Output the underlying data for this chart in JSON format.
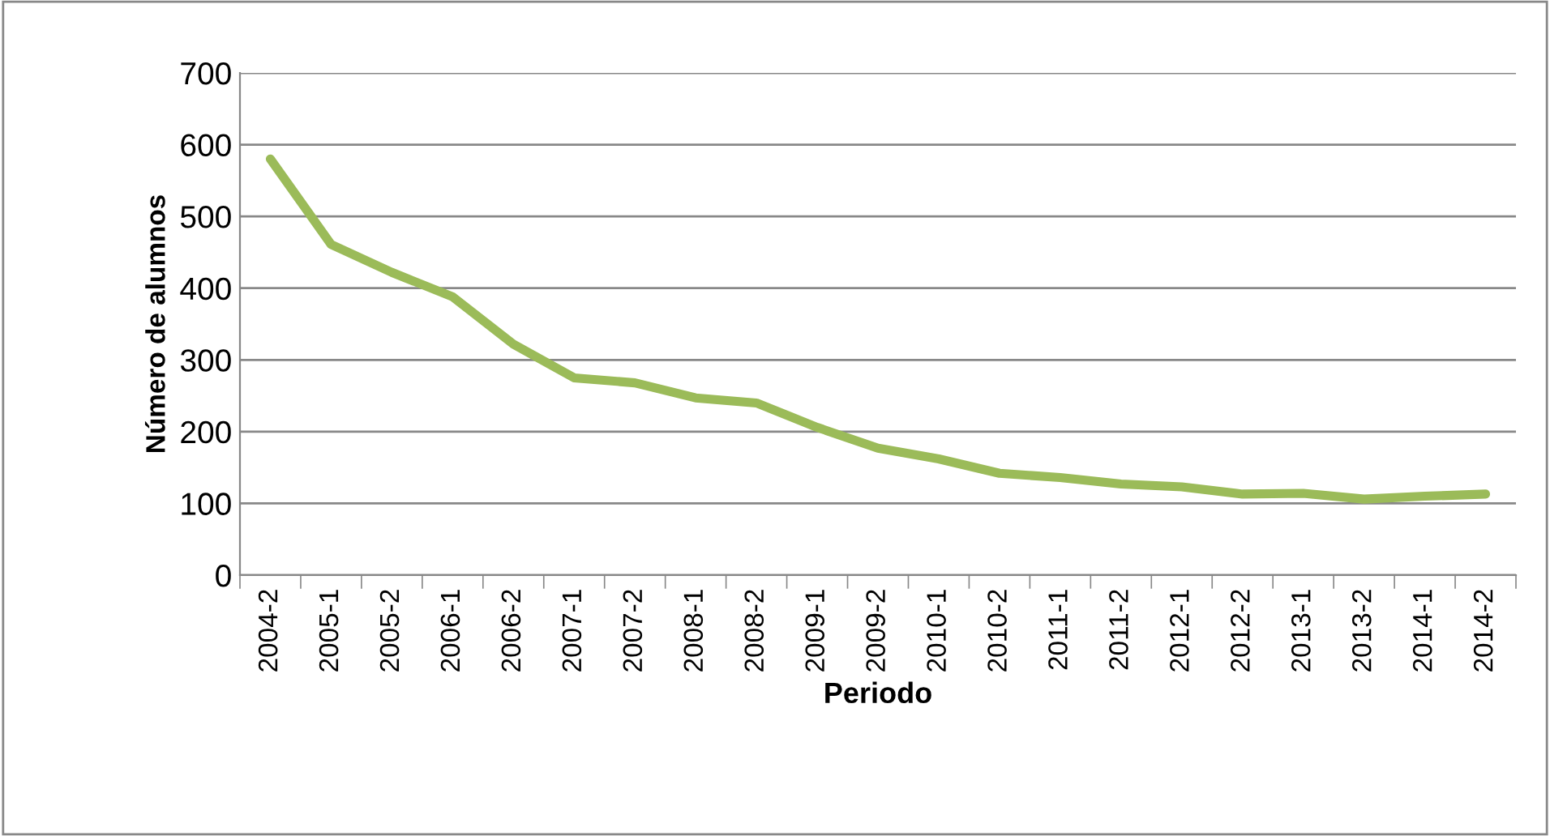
{
  "chart_data": {
    "type": "line",
    "xlabel": "Periodo",
    "ylabel": "Número de alumnos",
    "categories": [
      "2004-2",
      "2005-1",
      "2005-2",
      "2006-1",
      "2006-2",
      "2007-1",
      "2007-2",
      "2008-1",
      "2008-2",
      "2009-1",
      "2009-2",
      "2010-1",
      "2010-2",
      "2011-1",
      "2011-2",
      "2012-1",
      "2012-2",
      "2013-1",
      "2013-2",
      "2014-1",
      "2014-2"
    ],
    "series": [
      {
        "color": "#9bbb59",
        "values": [
          580,
          461,
          422,
          388,
          322,
          275,
          268,
          247,
          240,
          206,
          177,
          162,
          142,
          136,
          127,
          123,
          113,
          114,
          106,
          110,
          113
        ]
      }
    ],
    "ylim": [
      0,
      700
    ],
    "yticks": [
      0,
      100,
      200,
      300,
      400,
      500,
      600,
      700
    ],
    "grid": "y",
    "legend": false,
    "marker": "none",
    "line_style": "solid"
  }
}
